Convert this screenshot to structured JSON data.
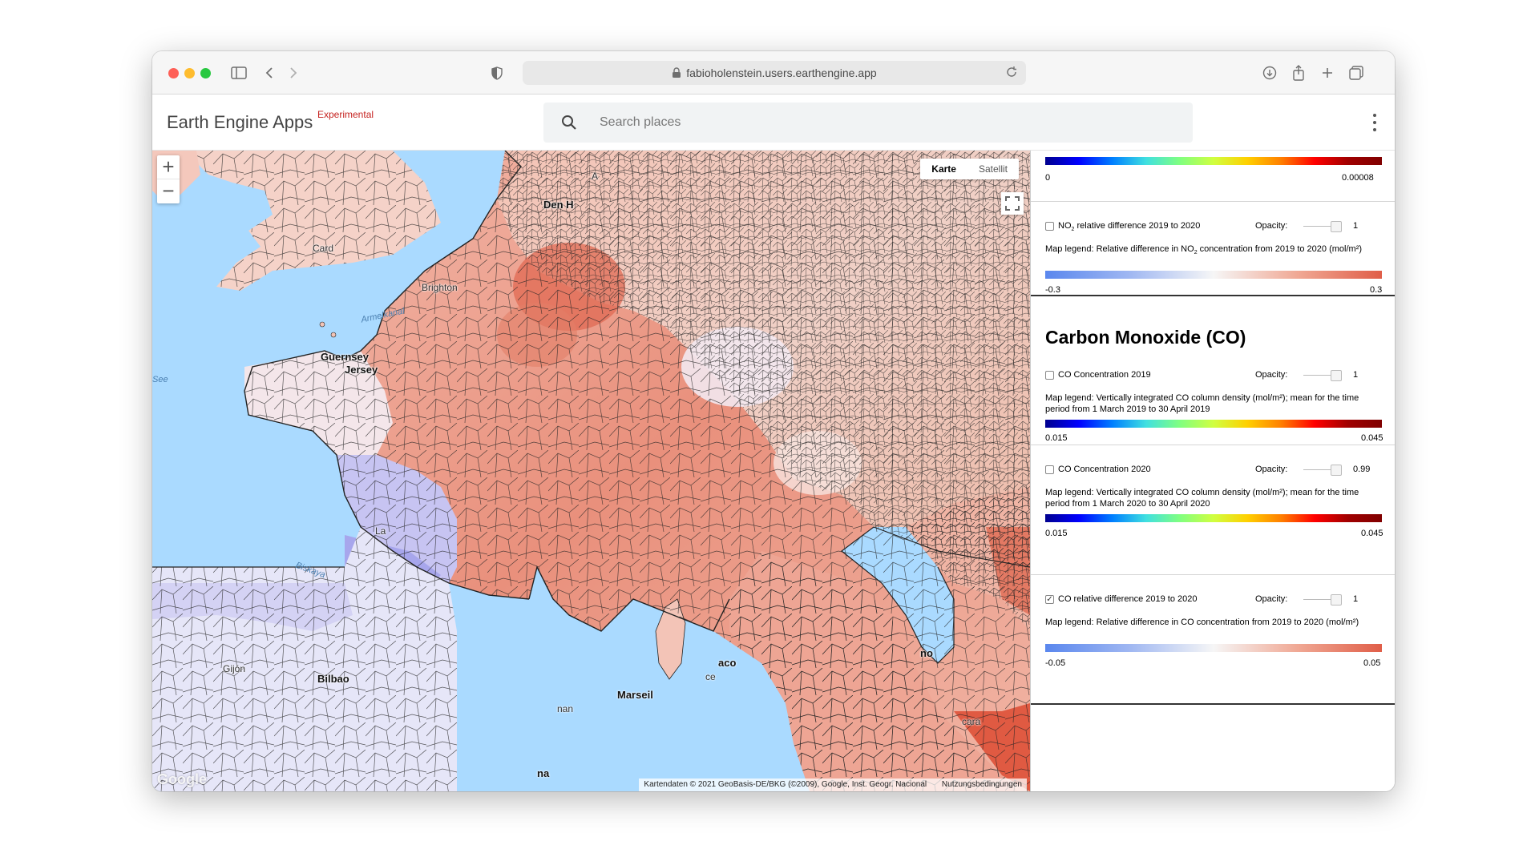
{
  "browser": {
    "url": "fabioholenstein.users.earthengine.app"
  },
  "app": {
    "title": "Earth Engine Apps",
    "badge": "Experimental",
    "search_placeholder": "Search places",
    "accent_color": "#c5221f"
  },
  "map": {
    "zoom_in": "+",
    "zoom_out": "−",
    "map_type_map": "Karte",
    "map_type_satellite": "Satellit",
    "labels": {
      "den_haag": "Den H",
      "brighton": "Brighton",
      "cardiff": "Card",
      "armelkanal": "Armelkanal",
      "guernsey": "Guernsey",
      "jersey": "Jersey",
      "see": "See",
      "biskaya": "Biskaya",
      "la_rochelle": "La",
      "gijon": "Gijón",
      "bilbao": "Bilbao",
      "marseille": "Marseil",
      "monaco": "aco",
      "nice": "ce",
      "man": "nan",
      "na": "na",
      "no": "no",
      "cara": "cara",
      "a": "A"
    },
    "attribution": "Kartendaten © 2021 GeoBasis-DE/BKG (©2009), Google, Inst. Geogr. Nacional",
    "terms": "Nutzungsbedingungen",
    "logo": "Google"
  },
  "panel": {
    "top_colorbar": {
      "min": "0",
      "max": "0.00008"
    },
    "no2_diff": {
      "label_pre": "NO",
      "label_sub": "2",
      "label_post": " relative difference 2019 to 2020",
      "opacity_label": "Opacity:",
      "opacity_value": "1",
      "checked": false,
      "legend_pre": "Map legend: Relative difference in NO",
      "legend_sub": "2",
      "legend_post": " concentration from 2019 to 2020 (mol/m²)",
      "min": "-0.3",
      "max": "0.3"
    },
    "co_title": "Carbon Monoxide (CO)",
    "co_2019": {
      "label": "CO Concentration 2019",
      "opacity_label": "Opacity:",
      "opacity_value": "1",
      "legend": "Map legend: Vertically integrated CO column density (mol/m²); mean for the time period from 1 March 2019 to 30 April 2019",
      "min": "0.015",
      "max": "0.045"
    },
    "co_2020": {
      "label": "CO Concentration 2020",
      "opacity_label": "Opacity:",
      "opacity_value": "0.99",
      "legend": "Map legend: Vertically integrated CO column density (mol/m²); mean for the time period from 1 March 2020 to 30 April 2020",
      "min": "0.015",
      "max": "0.045"
    },
    "co_diff": {
      "label": "CO relative difference 2019 to 2020",
      "opacity_label": "Opacity:",
      "opacity_value": "1",
      "checked": true,
      "legend": "Map legend: Relative difference in CO concentration from 2019 to 2020 (mol/m²)",
      "min": "-0.05",
      "max": "0.05"
    }
  }
}
